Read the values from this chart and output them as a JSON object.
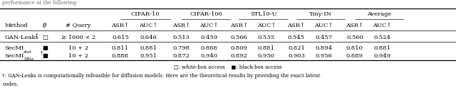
{
  "title_above": "performance at the following:",
  "group_headers": [
    "CIFAR-10",
    "CIFAR-100",
    "STL10-U",
    "Tiny-IN",
    "Average"
  ],
  "col_headers": [
    "Method",
    "θ",
    "# Query",
    "ASR↑",
    "AUC↑",
    "ASR↑",
    "AUC↑",
    "ASR↑",
    "AUC↑",
    "ASR↑",
    "AUC↑",
    "ASR↑",
    "AUC↑"
  ],
  "rows": [
    {
      "method_main": "GAN-Leaks",
      "method_sup": "†",
      "method_sub": "",
      "access": "white",
      "theta": "≥ 1000 × 2",
      "values": [
        "0.615",
        "0.646",
        "0.513",
        "0.459",
        "0.566",
        "0.535",
        "0.545",
        "0.457",
        "0.560",
        "0.524"
      ]
    },
    {
      "method_main": "SecMI",
      "method_sup": "",
      "method_sub": "stat",
      "method_sub_italic": true,
      "access": "black",
      "theta": "10 + 2",
      "values": [
        "0.811",
        "0.881",
        "0.798",
        "0.868",
        "0.809",
        "0.881",
        "0.821",
        "0.894",
        "0.810",
        "0.881"
      ]
    },
    {
      "method_main": "SecMI",
      "method_sup": "†",
      "method_sub": "NNₛ",
      "method_sub_italic": false,
      "access": "black",
      "theta": "10 + 2",
      "values": [
        "0.888",
        "0.951",
        "0.872",
        "0.940",
        "0.892",
        "0.950",
        "0.903",
        "0.956",
        "0.889",
        "0.949"
      ]
    }
  ],
  "footnote1": "□: white-box access    ■: black-box access",
  "footnote2": "†: GAN-Leaks is computationally infeasible for diffusion models. Here are the theoretical results by providing the exact latent",
  "footnote3": "codes."
}
